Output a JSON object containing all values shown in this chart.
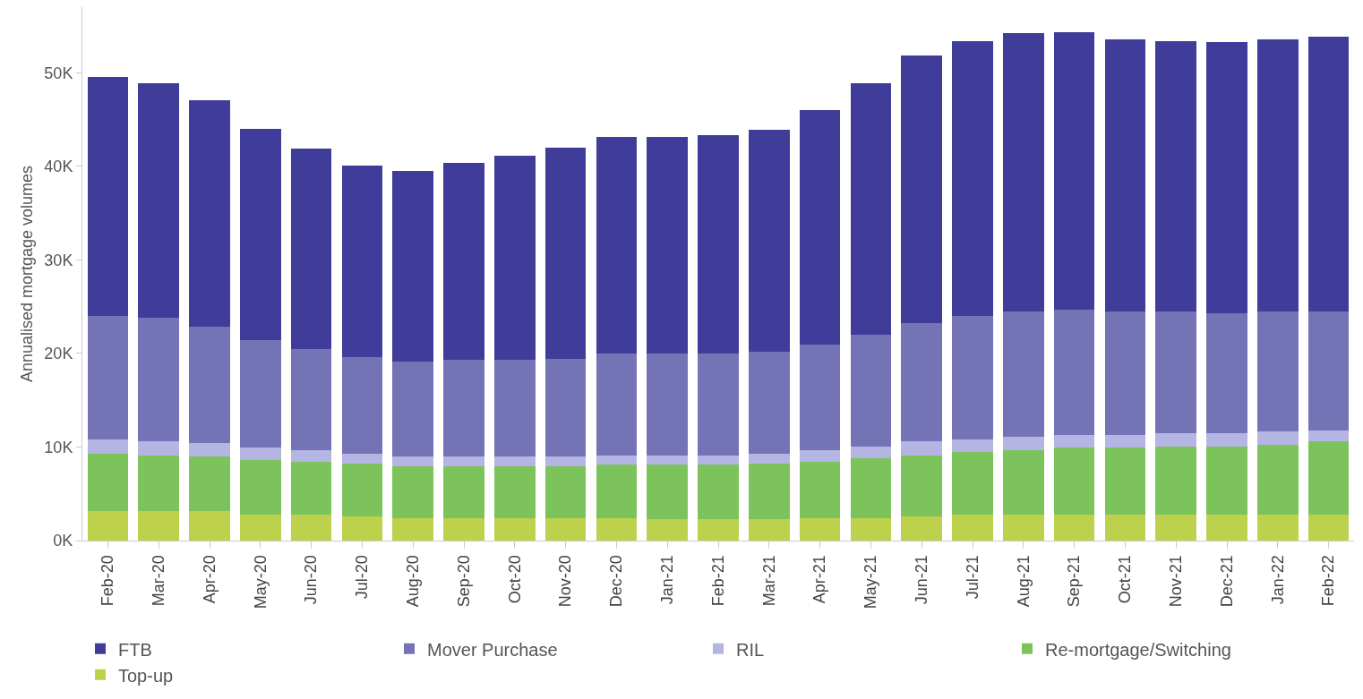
{
  "chart_data": {
    "type": "bar",
    "stacked": true,
    "ylabel": "Annualised mortgage volumes",
    "categories": [
      "Feb-20",
      "Mar-20",
      "Apr-20",
      "May-20",
      "Jun-20",
      "Jul-20",
      "Aug-20",
      "Sep-20",
      "Oct-20",
      "Nov-20",
      "Dec-20",
      "Jan-21",
      "Feb-21",
      "Mar-21",
      "Apr-21",
      "May-21",
      "Jun-21",
      "Jul-21",
      "Aug-21",
      "Sep-21",
      "Oct-21",
      "Nov-21",
      "Dec-21",
      "Jan-22",
      "Feb-22"
    ],
    "series": [
      {
        "name": "Top-up",
        "color": "#bdd14d",
        "values": [
          3200,
          3200,
          3200,
          2800,
          2800,
          2600,
          2400,
          2400,
          2400,
          2400,
          2400,
          2300,
          2300,
          2300,
          2400,
          2400,
          2600,
          2800,
          2800,
          2800,
          2800,
          2800,
          2800,
          2800,
          2800
        ]
      },
      {
        "name": "Re-mortgage/Switching",
        "color": "#7dc35b",
        "values": [
          6100,
          5900,
          5800,
          5800,
          5600,
          5600,
          5500,
          5500,
          5500,
          5500,
          5700,
          5800,
          5800,
          5900,
          6000,
          6400,
          6500,
          6700,
          6900,
          7100,
          7100,
          7200,
          7200,
          7400,
          7800
        ]
      },
      {
        "name": "RIL",
        "color": "#b5b5e4",
        "values": [
          1500,
          1500,
          1400,
          1300,
          1300,
          1100,
          1100,
          1100,
          1100,
          1100,
          1000,
          1000,
          1000,
          1100,
          1300,
          1200,
          1500,
          1300,
          1400,
          1400,
          1400,
          1500,
          1500,
          1500,
          1200
        ]
      },
      {
        "name": "Mover Purchase",
        "color": "#7373b6",
        "values": [
          13200,
          13200,
          12500,
          11500,
          10800,
          10300,
          10100,
          10300,
          10300,
          10400,
          10900,
          10900,
          10900,
          10900,
          11200,
          12000,
          12600,
          13200,
          13400,
          13400,
          13200,
          13000,
          12800,
          12800,
          12700
        ]
      },
      {
        "name": "FTB",
        "color": "#3f3d99",
        "values": [
          25500,
          25100,
          24200,
          22600,
          21400,
          20500,
          20400,
          21100,
          21800,
          22600,
          23100,
          23100,
          23300,
          23700,
          25100,
          26900,
          28600,
          29400,
          29700,
          29600,
          29100,
          28900,
          29000,
          29100,
          29300
        ]
      }
    ],
    "ylim": [
      0,
      57000
    ],
    "yticks": [
      {
        "value": 0,
        "label": "0K"
      },
      {
        "value": 10000,
        "label": "10K"
      },
      {
        "value": 20000,
        "label": "20K"
      },
      {
        "value": 30000,
        "label": "30K"
      },
      {
        "value": 40000,
        "label": "40K"
      },
      {
        "value": 50000,
        "label": "50K"
      }
    ],
    "grid": false,
    "legend": "bottom"
  }
}
